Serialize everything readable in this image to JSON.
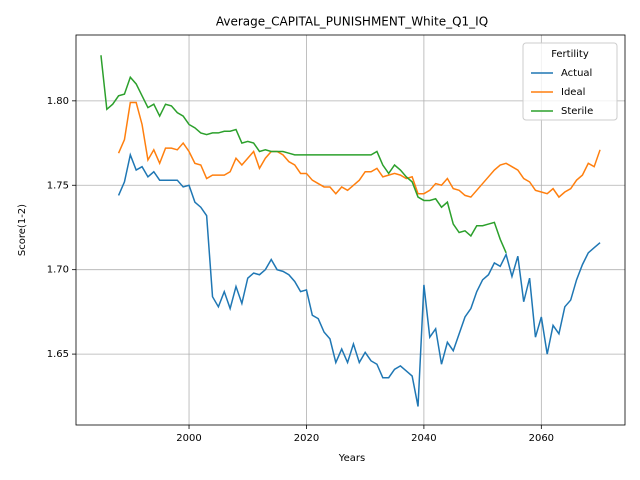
{
  "chart_data": {
    "type": "line",
    "title": "Average_CAPITAL_PUNISHMENT_White_Q1_IQ",
    "xlabel": "Years",
    "ylabel": "Score(1-2)",
    "legend_title": "Fertility",
    "legend": "upper right",
    "grid": true,
    "x": [
      1985,
      1986,
      1987,
      1988,
      1989,
      1990,
      1991,
      1992,
      1993,
      1994,
      1995,
      1996,
      1997,
      1998,
      1999,
      2000,
      2001,
      2002,
      2003,
      2004,
      2005,
      2006,
      2007,
      2008,
      2009,
      2010,
      2011,
      2012,
      2013,
      2014,
      2015,
      2016,
      2017,
      2018,
      2019,
      2020,
      2021,
      2022,
      2023,
      2024,
      2025,
      2026,
      2027,
      2028,
      2029,
      2030,
      2031,
      2032,
      2033,
      2034,
      2035,
      2036,
      2037,
      2038,
      2039,
      2040,
      2041,
      2042,
      2043,
      2044,
      2045,
      2046,
      2047,
      2048,
      2049,
      2050,
      2051,
      2052,
      2053,
      2054,
      2055,
      2056,
      2057,
      2058,
      2059,
      2060,
      2061,
      2062,
      2063,
      2064,
      2065,
      2066,
      2067,
      2068,
      2069,
      2070
    ],
    "xlim": [
      1980.75,
      2074.25
    ],
    "xticks": [
      2000,
      2020,
      2040,
      2060
    ],
    "ylim": [
      1.608,
      1.839
    ],
    "yticks": [
      {
        "value": 1.65,
        "label": "1.65"
      },
      {
        "value": 1.7,
        "label": "1.70"
      },
      {
        "value": 1.75,
        "label": "1.75"
      },
      {
        "value": 1.8,
        "label": "1.80"
      }
    ],
    "series": [
      {
        "name": "Actual",
        "color": "#1f77b4",
        "values": [
          null,
          null,
          null,
          1.744,
          1.752,
          1.768,
          1.759,
          1.761,
          1.755,
          1.758,
          1.753,
          1.753,
          1.753,
          1.753,
          1.749,
          1.75,
          1.74,
          1.737,
          1.732,
          1.684,
          1.678,
          1.687,
          1.677,
          1.69,
          1.68,
          1.695,
          1.698,
          1.697,
          1.7,
          1.706,
          1.7,
          1.699,
          1.697,
          1.693,
          1.687,
          1.688,
          1.673,
          1.671,
          1.663,
          1.659,
          1.645,
          1.653,
          1.645,
          1.656,
          1.645,
          1.651,
          1.646,
          1.644,
          1.636,
          1.636,
          1.641,
          1.643,
          1.64,
          1.637,
          1.619,
          1.691,
          1.66,
          1.665,
          1.644,
          1.657,
          1.652,
          1.662,
          1.672,
          1.677,
          1.687,
          1.694,
          1.697,
          1.704,
          1.702,
          1.709,
          1.696,
          1.708,
          1.681,
          1.695,
          1.66,
          1.672,
          1.65,
          1.667,
          1.662,
          1.678,
          1.682,
          1.694,
          1.703,
          1.71,
          1.713,
          1.716
        ]
      },
      {
        "name": "Ideal",
        "color": "#ff7f0e",
        "values": [
          null,
          null,
          null,
          1.769,
          1.777,
          1.799,
          1.799,
          1.786,
          1.765,
          1.771,
          1.763,
          1.772,
          1.772,
          1.771,
          1.775,
          1.77,
          1.763,
          1.762,
          1.754,
          1.756,
          1.756,
          1.756,
          1.758,
          1.766,
          1.762,
          1.766,
          1.77,
          1.76,
          1.766,
          1.77,
          1.77,
          1.768,
          1.764,
          1.762,
          1.757,
          1.757,
          1.753,
          1.751,
          1.749,
          1.749,
          1.745,
          1.749,
          1.747,
          1.75,
          1.753,
          1.758,
          1.758,
          1.76,
          1.755,
          1.756,
          1.757,
          1.756,
          1.754,
          1.755,
          1.745,
          1.745,
          1.747,
          1.751,
          1.75,
          1.754,
          1.748,
          1.747,
          1.744,
          1.743,
          1.747,
          1.751,
          1.755,
          1.759,
          1.762,
          1.763,
          1.761,
          1.759,
          1.754,
          1.752,
          1.747,
          1.746,
          1.745,
          1.748,
          1.743,
          1.746,
          1.748,
          1.753,
          1.756,
          1.763,
          1.761,
          1.771
        ]
      },
      {
        "name": "Sterile",
        "color": "#2ca02c",
        "values": [
          1.827,
          1.795,
          1.798,
          1.803,
          1.804,
          1.814,
          1.81,
          1.803,
          1.796,
          1.798,
          1.791,
          1.798,
          1.797,
          1.793,
          1.791,
          1.786,
          1.784,
          1.781,
          1.78,
          1.781,
          1.781,
          1.782,
          1.782,
          1.783,
          1.775,
          1.776,
          1.775,
          1.77,
          1.771,
          1.77,
          1.77,
          1.77,
          1.769,
          1.768,
          1.768,
          1.768,
          1.768,
          1.768,
          1.768,
          1.768,
          1.768,
          1.768,
          1.768,
          1.768,
          1.768,
          1.768,
          1.768,
          1.77,
          1.762,
          1.757,
          1.762,
          1.759,
          1.755,
          1.752,
          1.743,
          1.741,
          1.741,
          1.742,
          1.737,
          1.74,
          1.727,
          1.722,
          1.723,
          1.72,
          1.726,
          1.726,
          1.727,
          1.728,
          1.718,
          1.71,
          null,
          null,
          null,
          null,
          null,
          null,
          null,
          null,
          null,
          null,
          null,
          null,
          null,
          null,
          null,
          null
        ]
      }
    ]
  }
}
